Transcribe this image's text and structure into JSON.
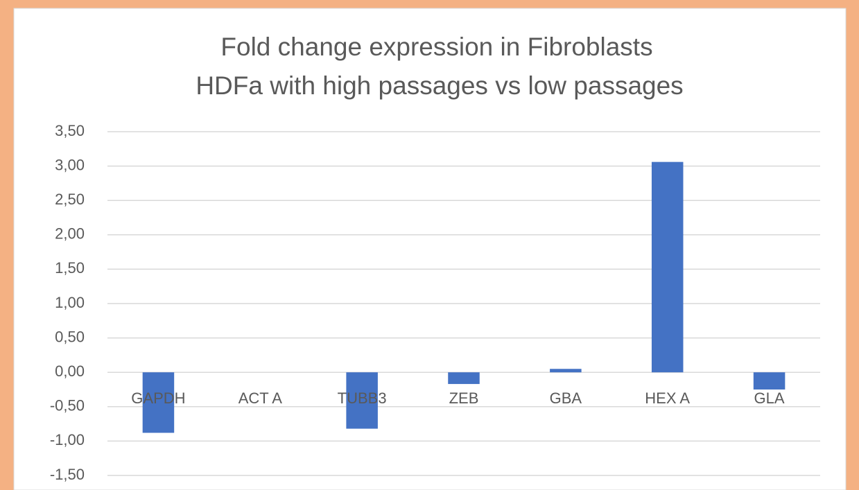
{
  "chart_data": {
    "type": "bar",
    "title": [
      "Fold change expression in Fibroblasts",
      "HDFa with high passages vs low passages"
    ],
    "categories": [
      "GAPDH",
      "ACT A",
      "TUBB3",
      "ZEB",
      "GBA",
      "HEX A",
      "GLA"
    ],
    "values": [
      -0.88,
      0,
      -0.82,
      -0.17,
      0.05,
      3.06,
      -0.25
    ],
    "color": "#4472c4",
    "ylim": [
      -1.5,
      3.5
    ],
    "yticks": [
      {
        "value": -1.5,
        "label": "-1,50"
      },
      {
        "value": -1,
        "label": "-1,00"
      },
      {
        "value": -0.5,
        "label": "-0,50"
      },
      {
        "value": 0,
        "label": "0,00"
      },
      {
        "value": 0.5,
        "label": "0,50"
      },
      {
        "value": 1,
        "label": "1,00"
      },
      {
        "value": 1.5,
        "label": "1,50"
      },
      {
        "value": 2,
        "label": "2,00"
      },
      {
        "value": 2.5,
        "label": "2,50"
      },
      {
        "value": 3,
        "label": "3,00"
      },
      {
        "value": 3.5,
        "label": "3,50"
      }
    ],
    "grid": true
  }
}
